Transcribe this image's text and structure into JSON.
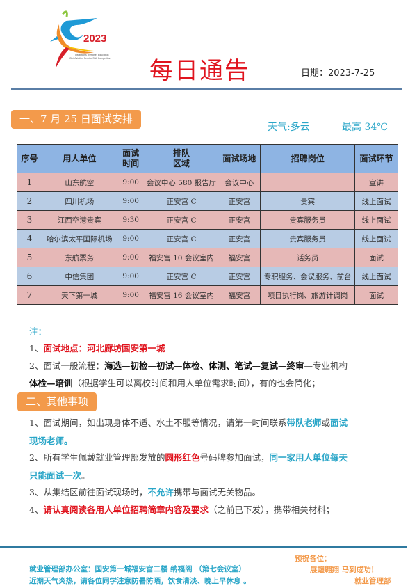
{
  "logo": {
    "year": "2023",
    "line1": "Institutions of Higher Education",
    "line2": "Civil Aviation Service Skill Competition"
  },
  "header": {
    "title": "每日通告",
    "date_label": "日期：",
    "date": "2023-7-25"
  },
  "section1": {
    "title": "一、7 月 25 日面试安排",
    "weather": "天气:多云",
    "high": "最高 34℃"
  },
  "table": {
    "headers": [
      "序号",
      "用人单位",
      "面试\n时间",
      "排队\n区域",
      "面试场地",
      "招聘岗位",
      "面试环节"
    ],
    "rows": [
      [
        "1",
        "山东航空",
        "9:00",
        "会议中心 580 报告厅",
        "会议中心",
        "",
        "宣讲"
      ],
      [
        "2",
        "四川机场",
        "9:00",
        "正安宫 C",
        "正安宫",
        "贵宾",
        "线上面试"
      ],
      [
        "3",
        "江西空港贵宾",
        "9:30",
        "正安宫 C",
        "正安宫",
        "贵宾服务员",
        "线上面试"
      ],
      [
        "4",
        "哈尔滨太平国际机场",
        "9:00",
        "正安宫 C",
        "正安宫",
        "贵宾服务员",
        "线上面试"
      ],
      [
        "5",
        "东航票务",
        "9:00",
        "福安宫 10 会议室内",
        "福安宫",
        "话务员",
        "面试"
      ],
      [
        "6",
        "中信集团",
        "9:00",
        "正安宫 C",
        "正安宫",
        "专职服务、会议服务、前台",
        "线上面试"
      ],
      [
        "7",
        "天下第一城",
        "9:00",
        "福安宫 16 会议室内",
        "福安宫",
        "项目执行岗、旅游计调岗",
        "面试"
      ]
    ]
  },
  "notes": {
    "label": "注：",
    "n1_prefix": "1、",
    "n1": "面试地点：河北廊坊国安第一城",
    "n2_prefix": "2、面试一般流程：",
    "n2_bold": "海选—初检—初试—体检、体测、笔试—复试—终审",
    "n2_rest": "—专业机构",
    "n2b_bold": "体检—培训",
    "n2b_rest": "（根据学生可以离校时间和用人单位需求时间），有的也会简化；"
  },
  "section2": {
    "title": "二、其他事项",
    "i1a": "1、面试期间，如出现身体不适、水土不服等情况，请第一时间联系",
    "i1b": "带队老师",
    "i1c": "或",
    "i1d": "面试",
    "i1e": "现场老师。",
    "i2a": "2、所有学生佩戴就业管理部发放的",
    "i2b": "圆形红色",
    "i2c": "号码牌参加面试，",
    "i2d": "同一家用人单位每天",
    "i2e": "只能面试一次",
    "i2f": "。",
    "i3a": "3、从集结区前往面试现场时，",
    "i3b": "不允许",
    "i3c": "携带与面试无关物品。",
    "i4a": "4、",
    "i4b": "请认真阅读各用人单位招聘简章内容及要求",
    "i4c": "（之前已下发），携带相关材料；"
  },
  "footer": {
    "office": "就业管理部办公室：国安第一城福安宫二楼 纳福阁 （第七会议室）",
    "tip": "近期天气炎热，请各位同学注意防暑防晒，饮食清淡、晚上早休息 。",
    "wish1": "预祝各位：",
    "wish2": "展翅翱翔 马到成功！",
    "dept": "就业管理部"
  },
  "colors": {
    "title_red": "#e0141e",
    "accent_orange": "#f39a4b",
    "accent_cyan": "#2aa6c8",
    "header_blue": "#8eb4e3",
    "row_pink": "#e6b8b7",
    "row_blue": "#b8cce4"
  }
}
